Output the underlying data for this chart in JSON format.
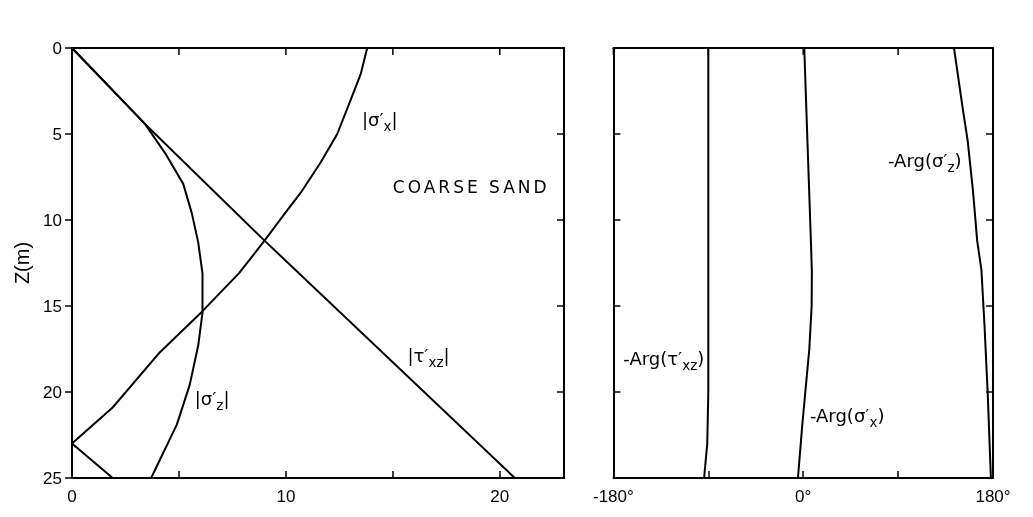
{
  "chart_data": [
    {
      "type": "line",
      "ylabel": "Z(m)",
      "annotations": [
        "COARSE SAND"
      ],
      "xlim": [
        0,
        23
      ],
      "xticks": [
        0,
        {
          "value": 5,
          "label": null
        },
        10,
        {
          "value": 15,
          "label": null
        },
        20
      ],
      "ylim": [
        25,
        0
      ],
      "yticks": [
        0,
        5,
        10,
        15,
        20,
        25
      ],
      "marker": "none",
      "line_style": "solid",
      "series": [
        {
          "name": "|σ′$_{x}$|",
          "color": "#000000",
          "x": [
            13.8,
            13.5,
            13.0,
            12.4,
            11.6,
            10.7,
            9.9,
            9.0,
            8.5,
            7.8,
            6.1,
            4.1,
            1.9,
            0,
            1.9
          ],
          "values": [
            0,
            1.5,
            3.1,
            5,
            6.7,
            8.4,
            9.7,
            11.2,
            12,
            13.1,
            15.3,
            17.7,
            20.9,
            23,
            25
          ]
        },
        {
          "name": "|σ′$_{z}$|",
          "color": "#000000",
          "x": [
            0,
            3.4,
            4.4,
            5.2,
            5.6,
            5.9,
            6.1,
            6.1,
            5.9,
            5.5,
            4.9,
            3.7
          ],
          "values": [
            0,
            4.4,
            6.2,
            7.9,
            9.6,
            11.3,
            13.1,
            15.4,
            17.3,
            19.6,
            21.9,
            25
          ]
        },
        {
          "name": "|τ′$_{xz}$|",
          "color": "#000000",
          "x": [
            0,
            3.4,
            9.0,
            20.7
          ],
          "values": [
            0,
            4.4,
            11.2,
            25
          ]
        }
      ]
    },
    {
      "type": "line",
      "xlim": [
        -180,
        180
      ],
      "xticks": [
        {
          "value": -180,
          "label": "-180°"
        },
        {
          "value": -90,
          "label": null
        },
        {
          "value": 0,
          "label": "0°"
        },
        {
          "value": 90,
          "label": null
        },
        {
          "value": 180,
          "label": "180°"
        }
      ],
      "ylim": [
        25,
        0
      ],
      "yticks": [
        5,
        10,
        15,
        20
      ],
      "tick_labels": "x",
      "marker": "none",
      "line_style": "solid",
      "series": [
        {
          "name": "-Arg(σ′$_{z}$)",
          "color": "#000000",
          "x": [
            143,
            151,
            156,
            161,
            165,
            169,
            172,
            175,
            178
          ],
          "values": [
            0,
            3.4,
            5.4,
            8.3,
            11.2,
            12.9,
            16.2,
            20.1,
            25
          ]
        },
        {
          "name": "-Arg(τ′$_{xz}$)",
          "color": "#000000",
          "x": [
            -90,
            -90,
            -91,
            -94
          ],
          "values": [
            0,
            20,
            23,
            25
          ]
        },
        {
          "name": "-Arg(σ′$_{x}$)",
          "color": "#000000",
          "x": [
            1,
            4,
            7.3,
            8.2,
            8,
            5.8,
            2,
            -1,
            -5
          ],
          "values": [
            0,
            5.4,
            11.2,
            13,
            15,
            17.5,
            20,
            22,
            25
          ]
        }
      ]
    }
  ]
}
